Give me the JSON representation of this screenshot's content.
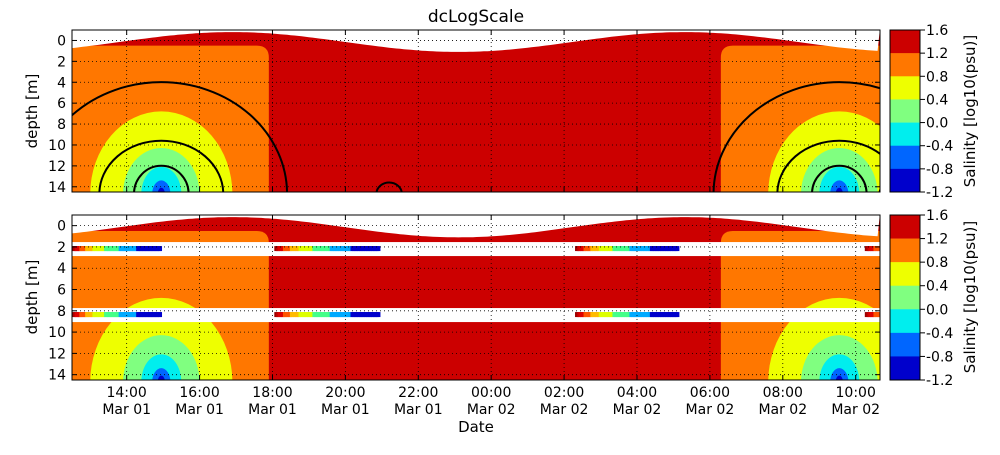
{
  "figure": {
    "title": "dcLogScale"
  },
  "chart_data": [
    {
      "type": "heatmap",
      "panel": "top",
      "ylabel": "depth [m]",
      "ylim": [
        14.5,
        -1
      ],
      "yticks": [
        0,
        2,
        4,
        6,
        8,
        10,
        12,
        14
      ],
      "x_range": [
        "Mar 01 12:30",
        "Mar 02 10:40"
      ],
      "grid": true,
      "contour_lines": true,
      "colorbar": {
        "label": "Salinity [log10(psu)]",
        "ticks": [
          "1.6",
          "1.2",
          "0.8",
          "0.4",
          "0.0",
          "-0.4",
          "-0.8",
          "-1.2"
        ],
        "colors": [
          "#cc0000",
          "#ff7700",
          "#eeff00",
          "#80ff80",
          "#00eeee",
          "#0066ff",
          "#0000cc"
        ]
      }
    },
    {
      "type": "heatmap",
      "panel": "bottom",
      "ylabel": "depth [m]",
      "xlabel": "Date",
      "ylim": [
        14.5,
        -1
      ],
      "yticks": [
        0,
        2,
        4,
        6,
        8,
        10,
        12,
        14
      ],
      "x_range": [
        "Mar 01 12:30",
        "Mar 02 10:40"
      ],
      "xticks": [
        {
          "time": "14:00",
          "date": "Mar 01"
        },
        {
          "time": "16:00",
          "date": "Mar 01"
        },
        {
          "time": "18:00",
          "date": "Mar 01"
        },
        {
          "time": "20:00",
          "date": "Mar 01"
        },
        {
          "time": "22:00",
          "date": "Mar 01"
        },
        {
          "time": "00:00",
          "date": "Mar 02"
        },
        {
          "time": "02:00",
          "date": "Mar 02"
        },
        {
          "time": "04:00",
          "date": "Mar 02"
        },
        {
          "time": "06:00",
          "date": "Mar 02"
        },
        {
          "time": "08:00",
          "date": "Mar 02"
        },
        {
          "time": "10:00",
          "date": "Mar 02"
        }
      ],
      "grid": true,
      "scatter_depths": [
        2.2,
        8.4
      ],
      "colorbar": {
        "label": "Salinity [log10(psu)]",
        "ticks": [
          "1.6",
          "1.2",
          "0.8",
          "0.4",
          "0.0",
          "-0.4",
          "-0.8",
          "-1.2"
        ],
        "colors": [
          "#cc0000",
          "#ff7700",
          "#eeff00",
          "#80ff80",
          "#00eeee",
          "#0066ff",
          "#0000cc"
        ]
      }
    }
  ]
}
